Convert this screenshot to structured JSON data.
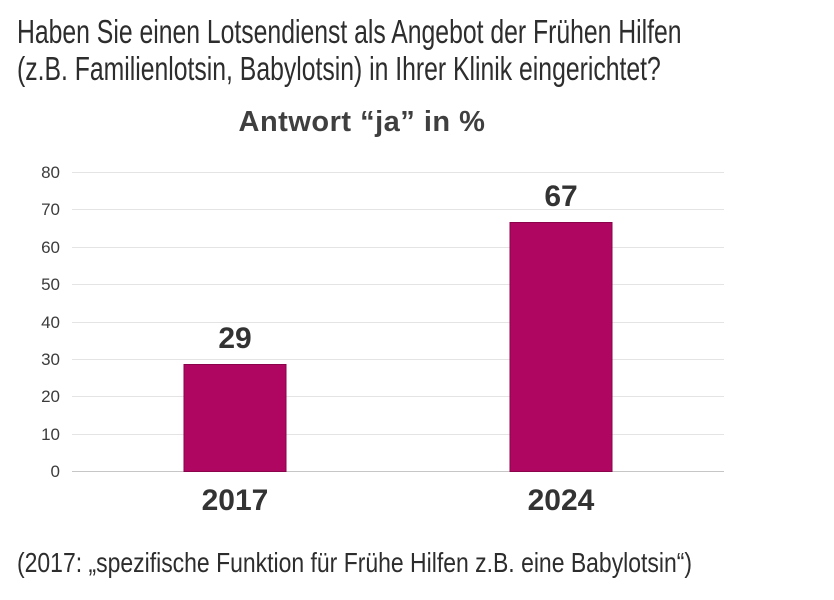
{
  "header": {
    "question_line1": "Haben Sie einen Lotsendienst als Angebot der Frühen Hilfen",
    "question_line2": "(z.B. Familienlotsin, Babylotsin) in Ihrer Klinik eingerichtet?"
  },
  "chart_data": {
    "type": "bar",
    "title": "Antwort “ja” in %",
    "categories": [
      "2017",
      "2024"
    ],
    "values": [
      29,
      67
    ],
    "xlabel": "",
    "ylabel": "",
    "ylim": [
      0,
      80
    ],
    "ytick_step": 10,
    "grid": true,
    "legend": false,
    "bar_color": "#AF0662"
  },
  "footnote": {
    "text": "(2017: „spezifische Funktion für Frühe Hilfen z.B. eine Babylotsin“)"
  }
}
